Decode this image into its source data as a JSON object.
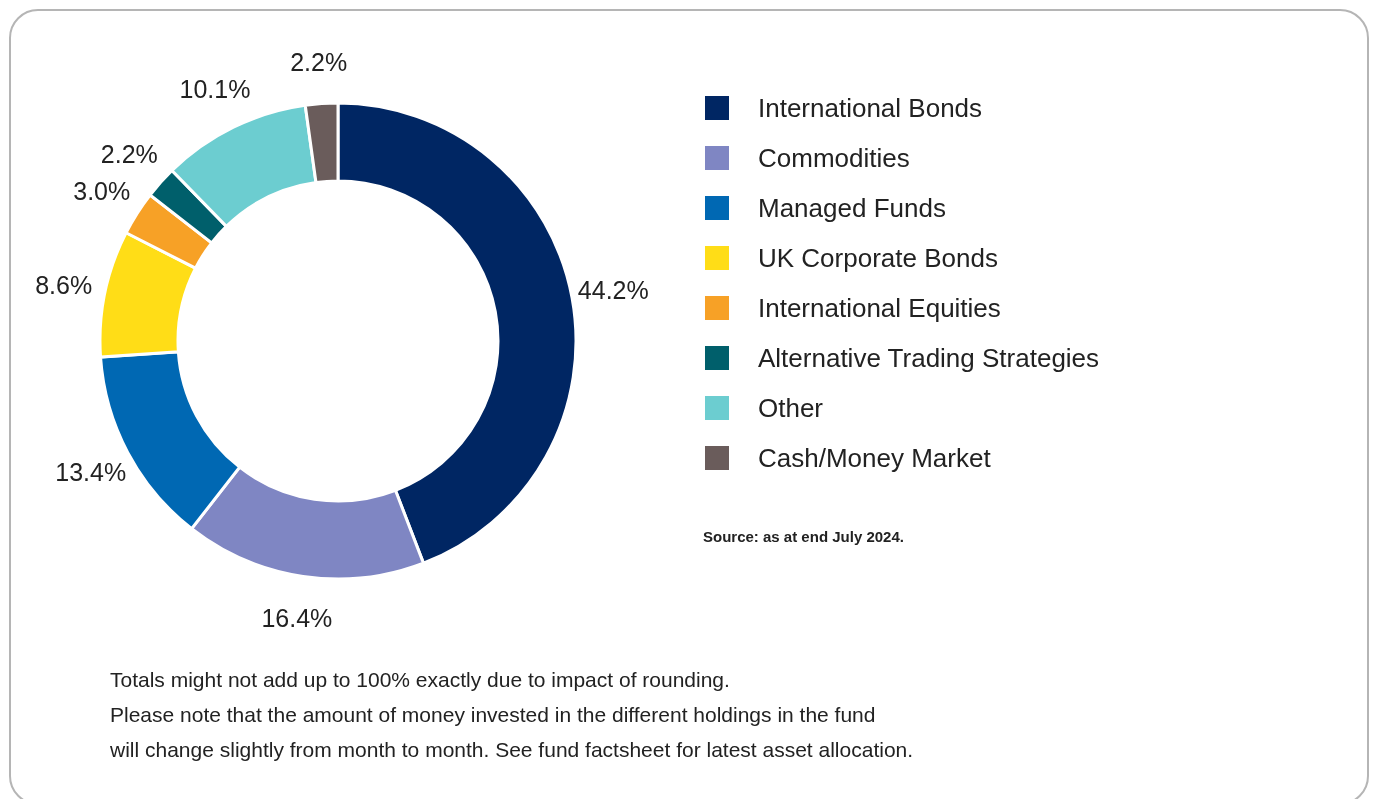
{
  "chart_data": {
    "type": "donut",
    "categories": [
      "International Bonds",
      "Commodities",
      "Managed Funds",
      "UK Corporate Bonds",
      "International Equities",
      "Alternative Trading Strategies",
      "Other",
      "Cash/Money Market"
    ],
    "values": [
      44.2,
      16.4,
      13.4,
      8.6,
      3.0,
      2.2,
      10.1,
      2.2
    ],
    "colors": [
      "#002663",
      "#7f86c3",
      "#0068b3",
      "#ffdd17",
      "#f7a126",
      "#005f6b",
      "#6ccdd0",
      "#6a5c5b"
    ],
    "value_labels": [
      "44.2%",
      "16.4%",
      "13.4%",
      "8.6%",
      "3.0%",
      "2.2%",
      "10.1%",
      "2.2%"
    ],
    "legend": "right",
    "annotations": [
      "Source: as at end July 2024.",
      "Totals might not add up to 100% exactly due to impact of rounding.",
      "Please note that the amount of money invested in the different holdings in the fund",
      "will change slightly from month to month. See fund factsheet for latest asset allocation."
    ]
  }
}
